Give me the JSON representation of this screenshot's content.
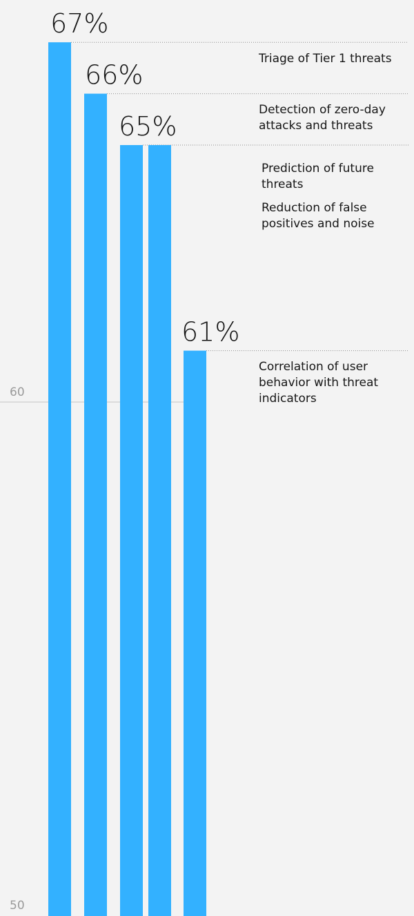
{
  "chart_data": {
    "type": "bar",
    "categories": [
      "Triage of Tier 1 threats",
      "Detection of zero-day attacks and threats",
      "Prediction of future threats",
      "Reduction of false positives and noise",
      "Correlation of user behavior with threat indicators"
    ],
    "values": [
      67,
      66,
      65,
      65,
      61
    ],
    "value_labels": [
      "67%",
      "66%",
      "65%",
      "",
      "61%"
    ],
    "y_ticks": [
      "60",
      "50"
    ],
    "ylim": [
      50,
      67
    ],
    "bar_color": "#33b1ff",
    "grid": false,
    "legend_position": "right"
  },
  "legend_lines": [
    [
      "Triage of Tier 1 threats"
    ],
    [
      "Detection of zero-day",
      "attacks and threats"
    ],
    [
      "Prediction of future",
      "threats"
    ],
    [
      "Reduction of false",
      "positives and noise"
    ],
    [
      "Correlation of user",
      "behavior with threat",
      "indicators"
    ]
  ]
}
